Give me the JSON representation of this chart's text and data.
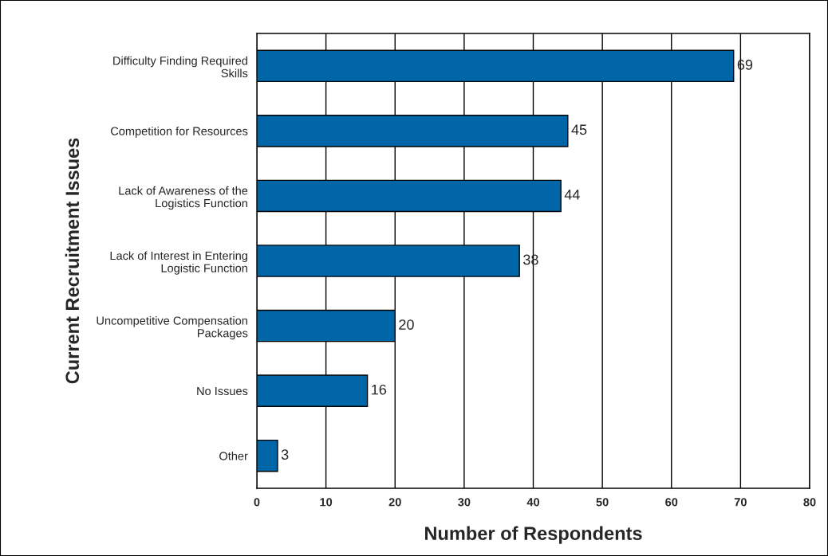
{
  "chart_data": {
    "type": "bar",
    "orientation": "horizontal",
    "xlabel": "Number of Respondents",
    "ylabel": "Current Recruitment Issues",
    "categories": [
      "Difficulty Finding Required\nSkills",
      "Competition for Resources",
      "Lack of Awareness of the\nLogistics Function",
      "Lack of Interest in Entering\nLogistic Function",
      "Uncompetitive Compensation\nPackages",
      "No Issues",
      "Other"
    ],
    "values": [
      69,
      45,
      44,
      38,
      20,
      16,
      3
    ],
    "color": "#0066a8",
    "xlim": [
      0,
      80
    ],
    "xticks": [
      0,
      10,
      20,
      30,
      40,
      50,
      60,
      70,
      80
    ],
    "grid": "x",
    "data_labels": true,
    "legend": false
  }
}
